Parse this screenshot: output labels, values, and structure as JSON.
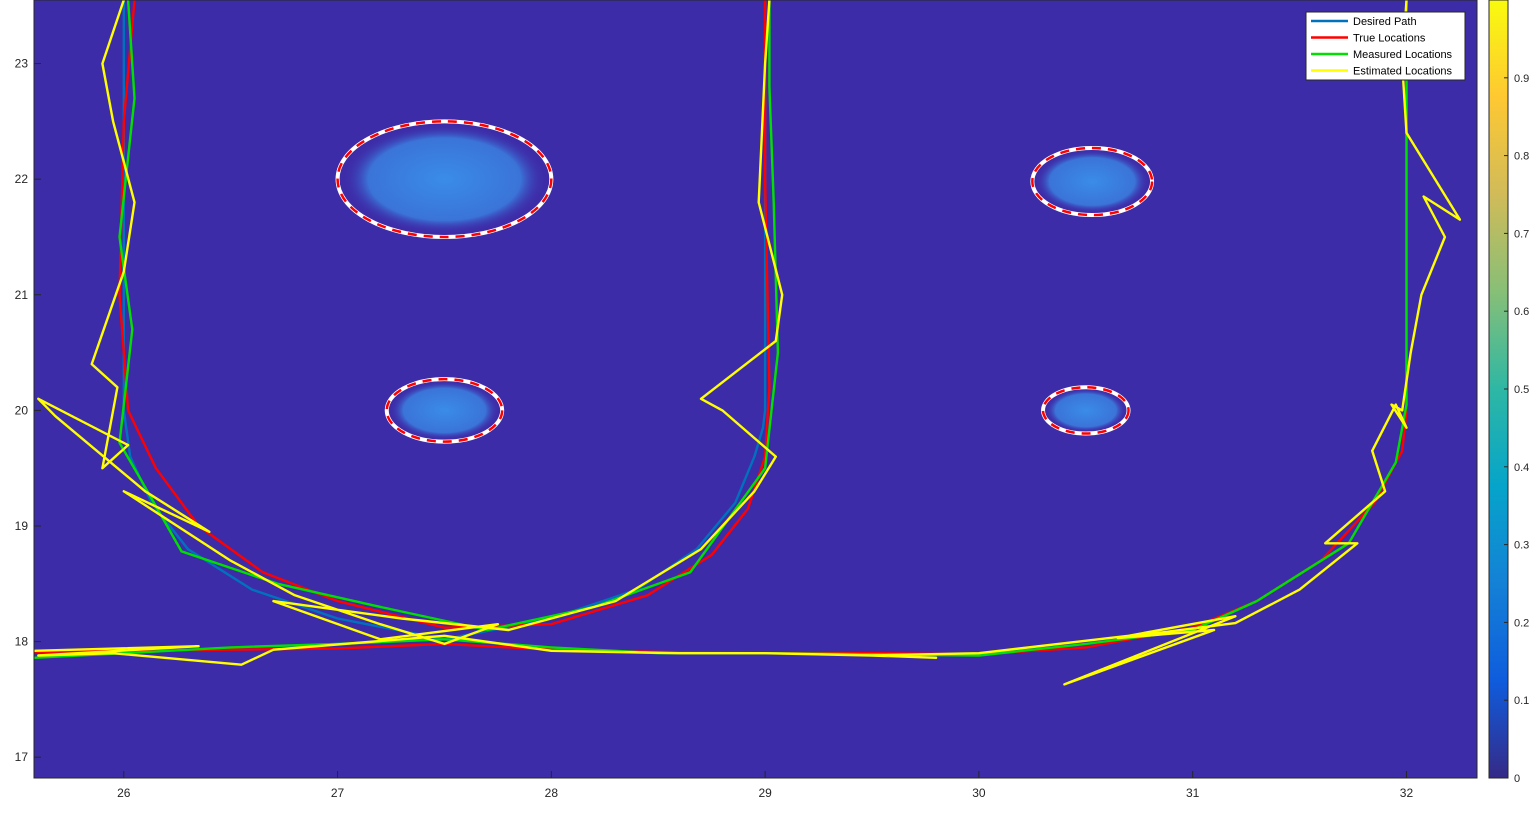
{
  "chart_data": {
    "type": "line",
    "title": "",
    "xlabel": "",
    "ylabel": "",
    "xlim": [
      25.58,
      32.33
    ],
    "ylim": [
      16.82,
      23.55
    ],
    "x_ticks": [
      "26",
      "27",
      "28",
      "29",
      "30",
      "31",
      "32"
    ],
    "y_ticks": [
      "17",
      "18",
      "19",
      "20",
      "21",
      "22",
      "23"
    ],
    "colorbar": {
      "range": [
        0,
        1
      ],
      "ticks": [
        "0",
        "0.1",
        "0.2",
        "0.3",
        "0.4",
        "0.5",
        "0.6",
        "0.7",
        "0.8",
        "0.9"
      ],
      "colormap": "parula"
    },
    "background_color": "#3d2ca8",
    "legend_position": "top-right",
    "grid": false,
    "obstacles": [
      {
        "cx": 27.5,
        "cy": 22.0,
        "rx": 0.5,
        "ry": 0.5
      },
      {
        "cx": 27.5,
        "cy": 20.0,
        "rx": 0.27,
        "ry": 0.27
      },
      {
        "cx": 30.53,
        "cy": 21.98,
        "rx": 0.28,
        "ry": 0.29
      },
      {
        "cx": 30.5,
        "cy": 20.0,
        "rx": 0.2,
        "ry": 0.2
      }
    ],
    "series": [
      {
        "name": "Desired Path",
        "color": "#0072bd",
        "x": [
          26.0,
          26.0,
          26.0,
          26.03,
          26.13,
          26.3,
          26.6,
          27.0,
          27.5,
          28.0,
          28.4,
          28.68,
          28.86,
          28.95,
          28.99,
          29.0,
          29.0,
          29.0
        ],
        "y": [
          23.55,
          22.0,
          20.0,
          19.6,
          19.2,
          18.8,
          18.45,
          18.2,
          18.02,
          18.2,
          18.45,
          18.8,
          19.2,
          19.6,
          19.85,
          20.0,
          22.0,
          23.55
        ]
      },
      {
        "name": "True Locations",
        "color": "#ff0000",
        "x": [
          25.58,
          26.0,
          26.5,
          27.0,
          27.5,
          28.0,
          28.5,
          29.0,
          29.5,
          30.0,
          30.5,
          31.0,
          31.3,
          31.6,
          31.85,
          31.98,
          32.0,
          32.0,
          32.0
        ],
        "y": [
          17.91,
          17.92,
          17.93,
          17.94,
          17.98,
          17.93,
          17.91,
          17.9,
          17.9,
          17.89,
          17.95,
          18.12,
          18.35,
          18.7,
          19.2,
          19.65,
          20.0,
          22.0,
          23.55
        ],
        "x2": [
          26.05,
          26.0,
          25.98,
          26.02,
          26.15,
          26.35,
          26.65,
          27.0,
          27.5,
          28.0,
          28.45,
          28.75,
          28.92,
          29.0,
          29.02,
          29.0,
          29.0
        ],
        "y2": [
          23.55,
          22.5,
          21.0,
          20.0,
          19.5,
          19.0,
          18.6,
          18.35,
          18.12,
          18.15,
          18.4,
          18.75,
          19.15,
          19.6,
          20.2,
          22.0,
          23.55
        ]
      },
      {
        "name": "Measured Locations",
        "color": "#00e000",
        "x": [
          25.58,
          26.0,
          26.5,
          27.0,
          27.5,
          28.0,
          28.5,
          29.0,
          29.5,
          30.0,
          30.5,
          31.0,
          31.3,
          31.73,
          31.95,
          32.0,
          32.0,
          32.0
        ],
        "y": [
          17.86,
          17.9,
          17.95,
          17.98,
          18.02,
          17.95,
          17.9,
          17.9,
          17.89,
          17.88,
          17.98,
          18.1,
          18.35,
          18.85,
          19.55,
          20.05,
          21.9,
          23.55
        ],
        "x2": [
          26.02,
          26.05,
          25.98,
          26.04,
          25.98,
          26.08,
          26.27,
          26.72,
          27.2,
          27.7,
          28.2,
          28.65,
          29.0,
          29.06,
          29.04,
          29.02,
          29.02
        ],
        "y2": [
          23.55,
          22.7,
          21.5,
          20.7,
          19.72,
          19.4,
          18.78,
          18.5,
          18.3,
          18.1,
          18.3,
          18.6,
          19.5,
          20.5,
          21.8,
          22.8,
          23.55
        ]
      },
      {
        "name": "Estimated Locations",
        "color": "#ffff00",
        "x": [
          25.58,
          26.35,
          25.6,
          25.95,
          26.55,
          26.7,
          27.5,
          28.0,
          28.6,
          29.0,
          29.5,
          29.8,
          29.5,
          30.0,
          30.7,
          31.2,
          30.4,
          31.1,
          30.65,
          31.2,
          31.5,
          31.77,
          31.62,
          31.9,
          31.84,
          31.95,
          32.0,
          31.93,
          31.98,
          32.02,
          32.07,
          32.18,
          32.08,
          32.25,
          32.0,
          31.98,
          32.0
        ],
        "y": [
          17.92,
          17.96,
          17.88,
          17.9,
          17.8,
          17.93,
          18.05,
          17.92,
          17.9,
          17.9,
          17.88,
          17.86,
          17.88,
          17.9,
          18.05,
          18.22,
          17.63,
          18.1,
          18.03,
          18.16,
          18.45,
          18.85,
          18.85,
          19.3,
          19.65,
          20.05,
          19.85,
          20.05,
          20.0,
          20.5,
          21.0,
          21.5,
          21.85,
          21.65,
          22.4,
          23.0,
          23.55
        ],
        "x2": [
          26.0,
          25.9,
          25.95,
          26.05,
          26.0,
          25.85,
          25.97,
          25.9,
          26.02,
          25.6,
          25.68,
          26.1,
          26.4,
          26.0,
          26.5,
          26.8,
          27.2,
          27.5,
          27.75,
          27.2,
          26.7,
          27.3,
          27.8,
          28.3,
          28.7,
          28.95,
          29.05,
          28.8,
          28.7,
          29.05,
          29.08,
          28.97,
          29.0,
          29.02
        ],
        "y2": [
          23.55,
          23.0,
          22.5,
          21.8,
          21.2,
          20.4,
          20.2,
          19.5,
          19.7,
          20.1,
          19.95,
          19.3,
          18.95,
          19.3,
          18.7,
          18.4,
          18.15,
          17.98,
          18.15,
          18.02,
          18.35,
          18.2,
          18.1,
          18.35,
          18.8,
          19.3,
          19.6,
          20.0,
          20.1,
          20.6,
          21.0,
          21.8,
          23.0,
          23.55
        ]
      }
    ]
  }
}
